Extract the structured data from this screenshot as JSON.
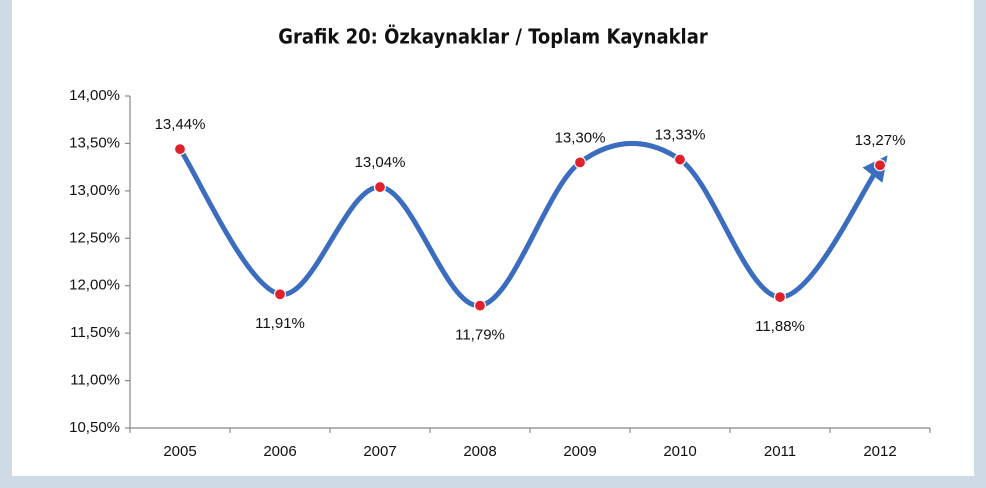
{
  "chart_data": {
    "type": "line",
    "title": "Grafik 20: Özkaynaklar / Toplam Kaynaklar",
    "categories": [
      "2005",
      "2006",
      "2007",
      "2008",
      "2009",
      "2010",
      "2011",
      "2012"
    ],
    "values": [
      13.44,
      11.91,
      13.04,
      11.79,
      13.3,
      13.33,
      11.88,
      13.27
    ],
    "value_labels": [
      "13,44%",
      "11,91%",
      "13,04%",
      "11,79%",
      "13,30%",
      "13,33%",
      "11,88%",
      "13,27%"
    ],
    "color": "#3a6cc0",
    "marker_color": "#e0202a",
    "ylim": [
      10.5,
      14.0
    ],
    "yticks": [
      {
        "value": 10.5,
        "label": "10,50%"
      },
      {
        "value": 11.0,
        "label": "11,00%"
      },
      {
        "value": 11.5,
        "label": "11,50%"
      },
      {
        "value": 12.0,
        "label": "12,00%"
      },
      {
        "value": 12.5,
        "label": "12,50%"
      },
      {
        "value": 13.0,
        "label": "13,00%"
      },
      {
        "value": 13.5,
        "label": "13,50%"
      },
      {
        "value": 14.0,
        "label": "14,00%"
      }
    ],
    "grid": false
  }
}
